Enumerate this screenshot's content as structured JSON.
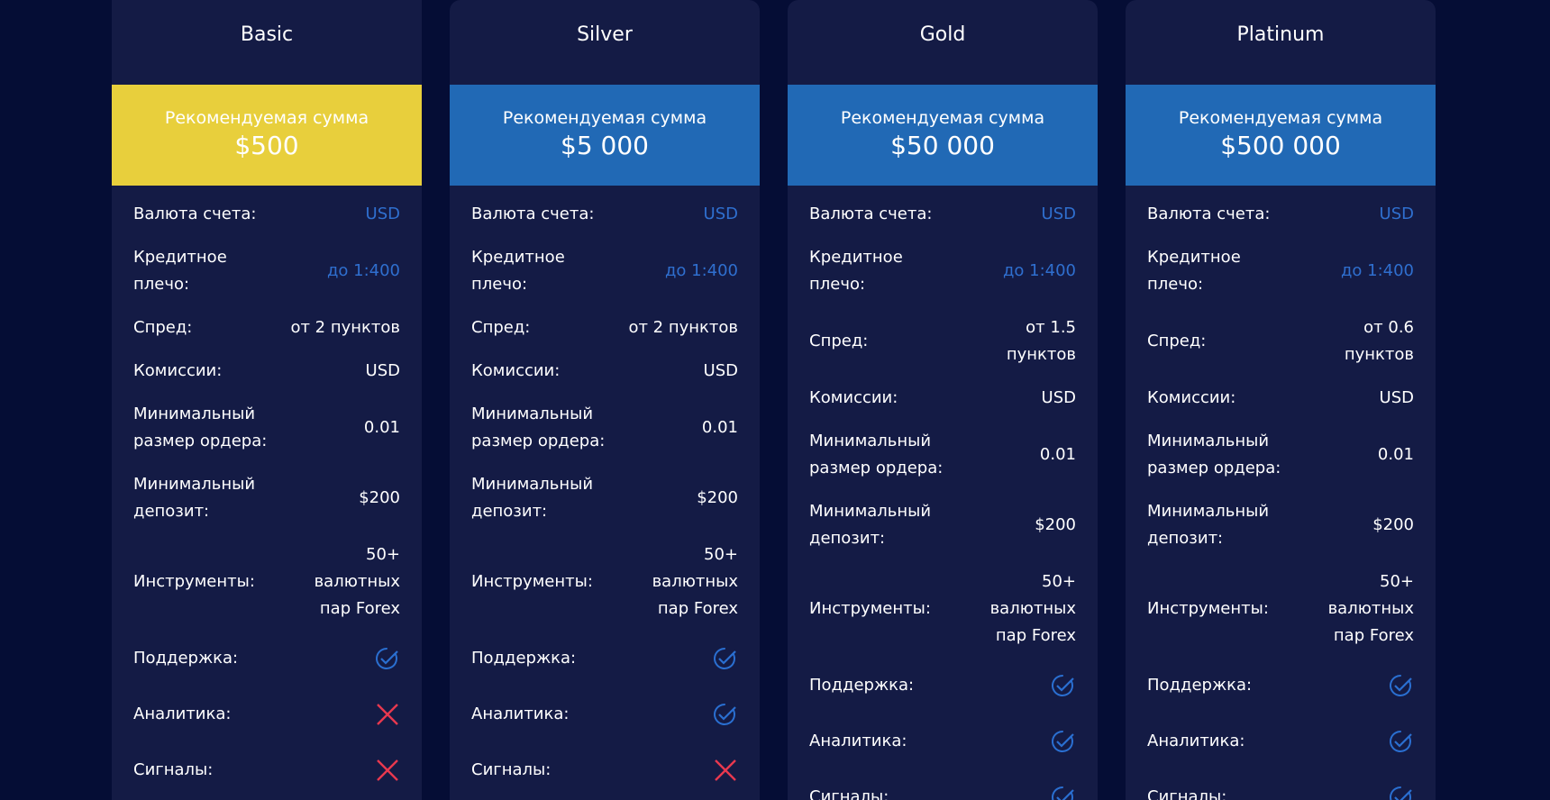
{
  "plans": [
    {
      "name": "Basic",
      "banner_color": "#e8cf3c",
      "banner_label": "Рекомендуемая сумма",
      "amount": "$500",
      "rows": [
        {
          "label": "Валюта счета:",
          "value": "USD",
          "highlight": true
        },
        {
          "label": "Кредитное плечо:",
          "value": "до 1:400",
          "highlight": true
        },
        {
          "label": "Спред:",
          "value": "от 2 пунктов"
        },
        {
          "label": "Комиссии:",
          "value": "USD"
        },
        {
          "label": "Минимальный размер ордера:",
          "value": "0.01"
        },
        {
          "label": "Минимальный депозит:",
          "value": "$200"
        },
        {
          "label": "Инструменты:",
          "value": "50+ валютных пар Forex"
        }
      ],
      "features": [
        {
          "label": "Поддержка:",
          "included": true
        },
        {
          "label": "Аналитика:",
          "included": false
        },
        {
          "label": "Сигналы:",
          "included": false
        }
      ]
    },
    {
      "name": "Silver",
      "banner_color": "#2169b5",
      "banner_label": "Рекомендуемая сумма",
      "amount": "$5 000",
      "rows": [
        {
          "label": "Валюта счета:",
          "value": "USD",
          "highlight": true
        },
        {
          "label": "Кредитное плечо:",
          "value": "до 1:400",
          "highlight": true
        },
        {
          "label": "Спред:",
          "value": "от 2 пунктов"
        },
        {
          "label": "Комиссии:",
          "value": "USD"
        },
        {
          "label": "Минимальный размер ордера:",
          "value": "0.01"
        },
        {
          "label": "Минимальный депозит:",
          "value": "$200"
        },
        {
          "label": "Инструменты:",
          "value": "50+ валютных пар Forex"
        }
      ],
      "features": [
        {
          "label": "Поддержка:",
          "included": true
        },
        {
          "label": "Аналитика:",
          "included": true
        },
        {
          "label": "Сигналы:",
          "included": false
        }
      ]
    },
    {
      "name": "Gold",
      "banner_color": "#2169b5",
      "banner_label": "Рекомендуемая сумма",
      "amount": "$50 000",
      "rows": [
        {
          "label": "Валюта счета:",
          "value": "USD",
          "highlight": true
        },
        {
          "label": "Кредитное плечо:",
          "value": "до 1:400",
          "highlight": true
        },
        {
          "label": "Спред:",
          "value": "от 1.5 пунктов"
        },
        {
          "label": "Комиссии:",
          "value": "USD"
        },
        {
          "label": "Минимальный размер ордера:",
          "value": "0.01"
        },
        {
          "label": "Минимальный депозит:",
          "value": "$200"
        },
        {
          "label": "Инструменты:",
          "value": "50+ валютных пар Forex"
        }
      ],
      "features": [
        {
          "label": "Поддержка:",
          "included": true
        },
        {
          "label": "Аналитика:",
          "included": true
        },
        {
          "label": "Сигналы:",
          "included": true
        }
      ]
    },
    {
      "name": "Platinum",
      "banner_color": "#2169b5",
      "banner_label": "Рекомендуемая сумма",
      "amount": "$500 000",
      "rows": [
        {
          "label": "Валюта счета:",
          "value": "USD",
          "highlight": true
        },
        {
          "label": "Кредитное плечо:",
          "value": "до 1:400",
          "highlight": true
        },
        {
          "label": "Спред:",
          "value": "от 0.6 пунктов"
        },
        {
          "label": "Комиссии:",
          "value": "USD"
        },
        {
          "label": "Минимальный размер ордера:",
          "value": "0.01"
        },
        {
          "label": "Минимальный депозит:",
          "value": "$200"
        },
        {
          "label": "Инструменты:",
          "value": "50+ валютных пар Forex"
        }
      ],
      "features": [
        {
          "label": "Поддержка:",
          "included": true
        },
        {
          "label": "Аналитика:",
          "included": true
        },
        {
          "label": "Сигналы:",
          "included": true
        }
      ]
    }
  ]
}
